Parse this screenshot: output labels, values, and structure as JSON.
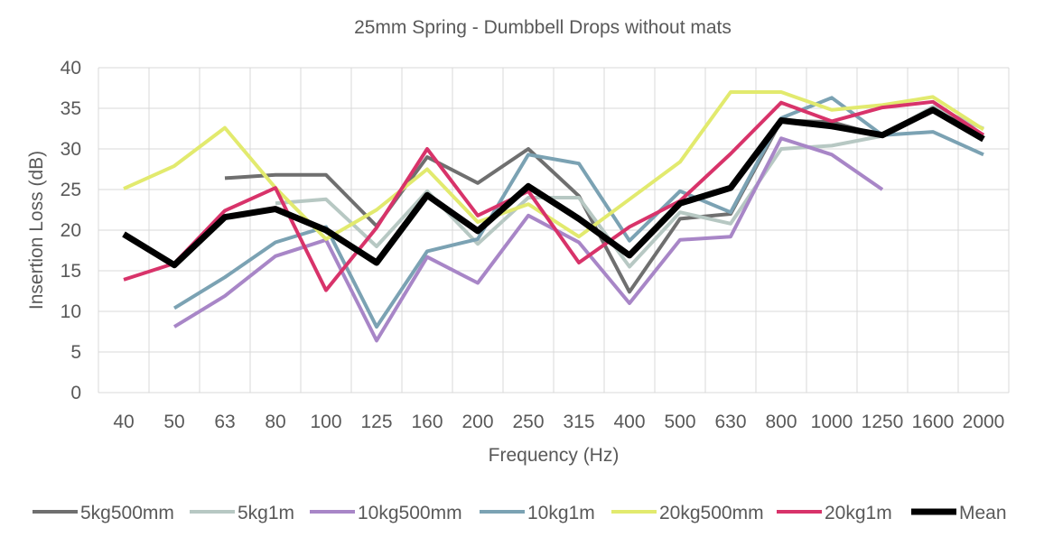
{
  "chart_data": {
    "type": "line",
    "title": "25mm Spring - Dumbbell Drops without mats",
    "xlabel": "Frequency (Hz)",
    "ylabel": "Insertion Loss (dB)",
    "ylim": [
      0,
      40
    ],
    "yticks": [
      "0",
      "5",
      "10",
      "15",
      "20",
      "25",
      "30",
      "35",
      "40"
    ],
    "grid": true,
    "legend_position": "bottom",
    "categories": [
      "40",
      "50",
      "63",
      "80",
      "100",
      "125",
      "160",
      "200",
      "250",
      "315",
      "400",
      "500",
      "630",
      "800",
      "1000",
      "1250",
      "1600",
      "2000"
    ],
    "series": [
      {
        "name": "5kg500mm",
        "color": "#6f6f6f",
        "width": 4,
        "values": [
          null,
          null,
          26.4,
          26.8,
          26.8,
          20.5,
          29.0,
          25.8,
          30.0,
          24.2,
          12.4,
          21.4,
          22.0,
          33.5,
          33.3,
          31.6,
          35.0,
          31.7
        ]
      },
      {
        "name": "5kg1m",
        "color": "#b7c8c3",
        "width": 4,
        "values": [
          null,
          null,
          null,
          23.3,
          23.8,
          18.0,
          24.8,
          18.3,
          24.0,
          24.0,
          15.5,
          22.2,
          20.8,
          30.0,
          30.4,
          31.6,
          35.2,
          32.5
        ]
      },
      {
        "name": "10kg500mm",
        "color": "#a886c7",
        "width": 4,
        "values": [
          null,
          8.1,
          11.9,
          16.8,
          18.8,
          6.4,
          16.7,
          13.5,
          21.8,
          18.5,
          11.0,
          18.8,
          19.2,
          31.3,
          29.3,
          25.0,
          null,
          null
        ]
      },
      {
        "name": "10kg1m",
        "color": "#7ba2b3",
        "width": 4,
        "values": [
          null,
          10.4,
          14.2,
          18.5,
          20.4,
          8.1,
          17.4,
          18.9,
          29.3,
          28.2,
          18.7,
          24.8,
          22.2,
          33.8,
          36.3,
          31.7,
          32.1,
          29.3
        ]
      },
      {
        "name": "20kg500mm",
        "color": "#e2ea6e",
        "width": 4,
        "values": [
          25.1,
          27.9,
          32.6,
          25.2,
          18.9,
          22.5,
          27.5,
          21.0,
          23.2,
          19.2,
          23.8,
          28.4,
          37.0,
          37.0,
          34.8,
          35.4,
          36.4,
          32.4
        ]
      },
      {
        "name": "20kg1m",
        "color": "#d8336a",
        "width": 4,
        "values": [
          13.9,
          15.9,
          22.4,
          25.2,
          12.6,
          20.3,
          30.0,
          21.8,
          24.8,
          16.0,
          20.4,
          23.6,
          29.4,
          35.7,
          33.4,
          35.1,
          35.8,
          31.7
        ]
      },
      {
        "name": "Mean",
        "color": "#000000",
        "width": 7,
        "values": [
          19.5,
          15.7,
          21.6,
          22.6,
          20.0,
          16.0,
          24.3,
          19.9,
          25.4,
          21.4,
          16.9,
          23.3,
          25.2,
          33.5,
          32.8,
          31.7,
          34.8,
          31.2
        ]
      }
    ]
  }
}
